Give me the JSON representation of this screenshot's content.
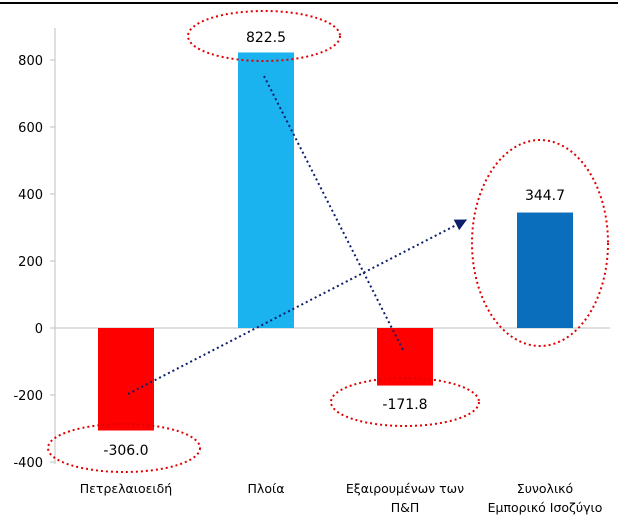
{
  "chart_data": {
    "type": "bar",
    "categories": [
      "Πετρελαιοειδή",
      "Πλοία",
      "Εξαιρουμένων των Π&Π",
      "Συνολικό Εμπορικό Ισοζύγιο"
    ],
    "category_lines": [
      [
        "Πετρελαιοειδή"
      ],
      [
        "Πλοία"
      ],
      [
        "Εξαιρουμένων των",
        "Π&Π"
      ],
      [
        "Συνολικό",
        "Εμπορικό Ισοζύγιο"
      ]
    ],
    "values": [
      -306.0,
      822.5,
      -171.8,
      344.7
    ],
    "value_labels": [
      "-306.0",
      "822.5",
      "-171.8",
      "344.7"
    ],
    "bar_colors": [
      "#ff0000",
      "#1ab2ef",
      "#ff0000",
      "#0a6ebd"
    ],
    "ylim": [
      -400,
      800
    ],
    "y_ticks": [
      -400,
      -200,
      0,
      200,
      400,
      600,
      800
    ],
    "y_tick_labels": [
      "-400",
      "-200",
      "0",
      "200",
      "400",
      "600",
      "800"
    ],
    "annotation_color": "#e00000",
    "arrow_color": "#0d1f6b",
    "grid": false,
    "legend": "none"
  }
}
